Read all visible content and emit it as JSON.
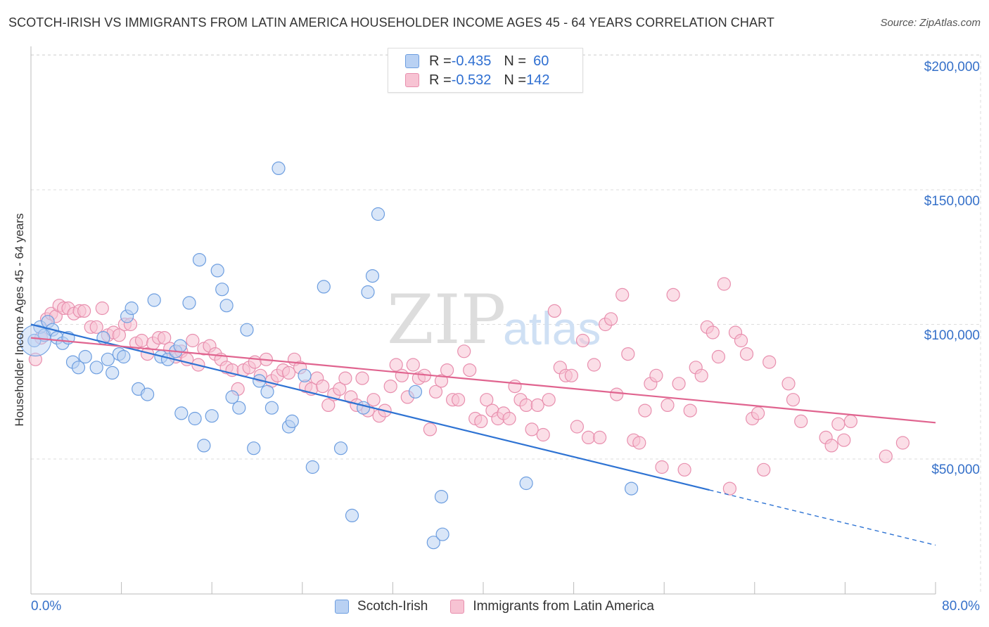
{
  "header": {
    "title": "SCOTCH-IRISH VS IMMIGRANTS FROM LATIN AMERICA HOUSEHOLDER INCOME AGES 45 - 64 YEARS CORRELATION CHART",
    "source": "Source: ZipAtlas.com"
  },
  "legend": {
    "series1": {
      "r_label": "R = ",
      "r_value": "-0.435",
      "n_label": "N = ",
      "n_value": "60"
    },
    "series2": {
      "r_label": "R = ",
      "r_value": "-0.532",
      "n_label": "N = ",
      "n_value": "142"
    }
  },
  "colors": {
    "blue_fill": "#b9d1f3",
    "blue_stroke": "#6d9ee0",
    "blue_line": "#2e73d3",
    "pink_fill": "#f7c3d3",
    "pink_stroke": "#e88fae",
    "pink_line": "#e0648f",
    "tick_label": "#3570c9",
    "grid": "#dddddd"
  },
  "watermark": {
    "zip": "ZIP",
    "atlas": "atlas"
  },
  "chart_data": {
    "type": "scatter",
    "title": "SCOTCH-IRISH VS IMMIGRANTS FROM LATIN AMERICA HOUSEHOLDER INCOME AGES 45 - 64 YEARS CORRELATION CHART",
    "xlabel": "",
    "ylabel": "Householder Income Ages 45 - 64 years",
    "xlim": [
      0,
      80
    ],
    "ylim": [
      0,
      210000
    ],
    "x_tick_labels": {
      "min": "0.0%",
      "max": "80.0%"
    },
    "y_ticks": [
      {
        "value": 50000,
        "label": "$50,000"
      },
      {
        "value": 100000,
        "label": "$100,000"
      },
      {
        "value": 150000,
        "label": "$150,000"
      },
      {
        "value": 200000,
        "label": "$200,000"
      }
    ],
    "series": [
      {
        "name": "Scotch-Irish",
        "color": "blue",
        "r": -0.435,
        "n": 60,
        "trend": {
          "x0": 0,
          "y0": 100000,
          "x1": 60,
          "y1": 38500,
          "dash_to_x": 80,
          "dash_to_y": 18000
        },
        "points": [
          [
            0.3,
            94000
          ],
          [
            0.8,
            99000
          ],
          [
            1.2,
            96000
          ],
          [
            1.5,
            101000
          ],
          [
            1.9,
            98000
          ],
          [
            2.3,
            95000
          ],
          [
            2.8,
            93000
          ],
          [
            3.3,
            95000
          ],
          [
            3.7,
            86000
          ],
          [
            4.2,
            84000
          ],
          [
            4.8,
            88000
          ],
          [
            5.8,
            84000
          ],
          [
            6.4,
            95000
          ],
          [
            6.8,
            87000
          ],
          [
            7.2,
            82000
          ],
          [
            7.8,
            89000
          ],
          [
            8.5,
            103000
          ],
          [
            8.2,
            88000
          ],
          [
            8.9,
            106000
          ],
          [
            9.5,
            76000
          ],
          [
            10.3,
            74000
          ],
          [
            10.9,
            109000
          ],
          [
            11.5,
            88000
          ],
          [
            12.1,
            87000
          ],
          [
            12.8,
            90000
          ],
          [
            13.2,
            92000
          ],
          [
            13.3,
            67000
          ],
          [
            14.0,
            108000
          ],
          [
            14.5,
            65000
          ],
          [
            14.9,
            124000
          ],
          [
            15.3,
            55000
          ],
          [
            16.0,
            66000
          ],
          [
            16.5,
            120000
          ],
          [
            16.9,
            113000
          ],
          [
            17.3,
            107000
          ],
          [
            17.8,
            73000
          ],
          [
            18.4,
            69000
          ],
          [
            19.1,
            98000
          ],
          [
            19.7,
            54000
          ],
          [
            20.2,
            79000
          ],
          [
            20.9,
            75000
          ],
          [
            21.3,
            69000
          ],
          [
            21.9,
            158000
          ],
          [
            22.8,
            62000
          ],
          [
            23.1,
            64000
          ],
          [
            24.2,
            81000
          ],
          [
            24.9,
            47000
          ],
          [
            25.9,
            114000
          ],
          [
            27.4,
            54000
          ],
          [
            28.4,
            29000
          ],
          [
            29.4,
            69000
          ],
          [
            29.8,
            112000
          ],
          [
            30.2,
            118000
          ],
          [
            30.7,
            141000
          ],
          [
            34.0,
            75000
          ],
          [
            35.6,
            19000
          ],
          [
            36.3,
            36000
          ],
          [
            36.4,
            22000
          ],
          [
            43.8,
            41000
          ],
          [
            53.1,
            39000
          ]
        ]
      },
      {
        "name": "Immigrants from Latin America",
        "color": "pink",
        "r": -0.532,
        "n": 142,
        "trend": {
          "x0": 0,
          "y0": 95000,
          "x1": 80,
          "y1": 63500
        },
        "points": [
          [
            0.4,
            87000
          ],
          [
            0.9,
            95000
          ],
          [
            1.4,
            102000
          ],
          [
            1.8,
            104000
          ],
          [
            2.2,
            103000
          ],
          [
            2.5,
            107000
          ],
          [
            2.9,
            106000
          ],
          [
            3.3,
            106000
          ],
          [
            3.8,
            104000
          ],
          [
            4.3,
            105000
          ],
          [
            4.7,
            105000
          ],
          [
            5.3,
            99000
          ],
          [
            5.8,
            99000
          ],
          [
            6.3,
            106000
          ],
          [
            6.8,
            96000
          ],
          [
            7.3,
            97000
          ],
          [
            7.8,
            96000
          ],
          [
            8.3,
            100000
          ],
          [
            8.8,
            100000
          ],
          [
            9.3,
            93000
          ],
          [
            9.8,
            94000
          ],
          [
            10.3,
            89000
          ],
          [
            10.8,
            93000
          ],
          [
            11.3,
            95000
          ],
          [
            11.8,
            95000
          ],
          [
            12.3,
            91000
          ],
          [
            12.8,
            88000
          ],
          [
            13.3,
            90000
          ],
          [
            13.8,
            87000
          ],
          [
            14.3,
            94000
          ],
          [
            14.8,
            85000
          ],
          [
            15.3,
            91000
          ],
          [
            15.8,
            92000
          ],
          [
            16.3,
            89000
          ],
          [
            16.8,
            87000
          ],
          [
            17.3,
            84000
          ],
          [
            17.8,
            83000
          ],
          [
            18.3,
            76000
          ],
          [
            18.8,
            83000
          ],
          [
            19.3,
            84000
          ],
          [
            19.8,
            86000
          ],
          [
            20.3,
            81000
          ],
          [
            20.8,
            87000
          ],
          [
            21.3,
            79000
          ],
          [
            21.8,
            81000
          ],
          [
            22.3,
            83000
          ],
          [
            22.8,
            82000
          ],
          [
            23.3,
            87000
          ],
          [
            23.8,
            84000
          ],
          [
            24.3,
            77000
          ],
          [
            24.8,
            76000
          ],
          [
            25.3,
            80000
          ],
          [
            25.8,
            77000
          ],
          [
            26.3,
            70000
          ],
          [
            26.8,
            74000
          ],
          [
            27.3,
            76000
          ],
          [
            27.8,
            80000
          ],
          [
            28.3,
            73000
          ],
          [
            28.8,
            70000
          ],
          [
            29.3,
            80000
          ],
          [
            29.8,
            68000
          ],
          [
            30.3,
            72000
          ],
          [
            30.8,
            66000
          ],
          [
            31.3,
            68000
          ],
          [
            31.8,
            77000
          ],
          [
            32.3,
            85000
          ],
          [
            32.8,
            81000
          ],
          [
            33.3,
            73000
          ],
          [
            33.8,
            85000
          ],
          [
            34.3,
            80000
          ],
          [
            34.8,
            81000
          ],
          [
            35.3,
            61000
          ],
          [
            35.8,
            75000
          ],
          [
            36.3,
            79000
          ],
          [
            36.8,
            83000
          ],
          [
            37.3,
            72000
          ],
          [
            37.8,
            72000
          ],
          [
            38.3,
            90000
          ],
          [
            38.8,
            83000
          ],
          [
            39.3,
            65000
          ],
          [
            39.8,
            64000
          ],
          [
            40.3,
            72000
          ],
          [
            40.8,
            68000
          ],
          [
            41.3,
            65000
          ],
          [
            41.8,
            67000
          ],
          [
            42.3,
            65000
          ],
          [
            42.8,
            77000
          ],
          [
            43.3,
            72000
          ],
          [
            43.8,
            70000
          ],
          [
            44.3,
            61000
          ],
          [
            44.8,
            70000
          ],
          [
            45.3,
            59000
          ],
          [
            45.8,
            72000
          ],
          [
            46.3,
            105000
          ],
          [
            46.8,
            84000
          ],
          [
            47.3,
            81000
          ],
          [
            47.8,
            81000
          ],
          [
            48.3,
            62000
          ],
          [
            48.8,
            94000
          ],
          [
            49.3,
            58000
          ],
          [
            49.8,
            85000
          ],
          [
            50.3,
            58000
          ],
          [
            50.8,
            100000
          ],
          [
            51.3,
            102000
          ],
          [
            51.8,
            74000
          ],
          [
            52.3,
            111000
          ],
          [
            52.8,
            89000
          ],
          [
            53.3,
            57000
          ],
          [
            53.8,
            56000
          ],
          [
            54.3,
            68000
          ],
          [
            54.8,
            78000
          ],
          [
            55.3,
            81000
          ],
          [
            55.8,
            47000
          ],
          [
            56.3,
            70000
          ],
          [
            56.8,
            111000
          ],
          [
            57.3,
            78000
          ],
          [
            57.8,
            46000
          ],
          [
            58.3,
            68000
          ],
          [
            58.8,
            84000
          ],
          [
            59.3,
            81000
          ],
          [
            59.8,
            99000
          ],
          [
            60.3,
            97000
          ],
          [
            60.8,
            88000
          ],
          [
            61.3,
            115000
          ],
          [
            61.8,
            39000
          ],
          [
            62.3,
            97000
          ],
          [
            62.8,
            94000
          ],
          [
            63.3,
            89000
          ],
          [
            63.8,
            65000
          ],
          [
            64.3,
            67000
          ],
          [
            64.8,
            46000
          ],
          [
            65.3,
            86000
          ],
          [
            67.0,
            78000
          ],
          [
            67.4,
            72000
          ],
          [
            68.1,
            64000
          ],
          [
            70.3,
            58000
          ],
          [
            70.8,
            55000
          ],
          [
            71.4,
            63000
          ],
          [
            71.9,
            57000
          ],
          [
            72.5,
            64000
          ],
          [
            75.6,
            51000
          ],
          [
            77.1,
            56000
          ]
        ]
      }
    ]
  },
  "bottom_legend": {
    "series1_label": "Scotch-Irish",
    "series2_label": "Immigrants from Latin America"
  }
}
